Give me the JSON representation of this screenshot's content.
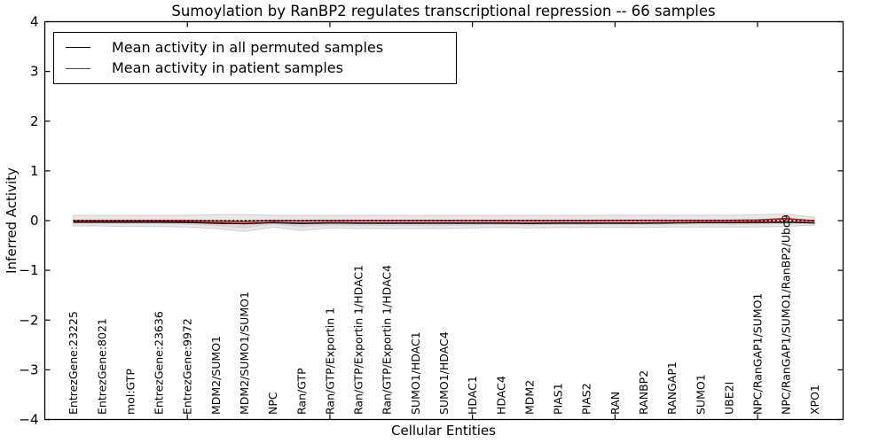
{
  "chart_data": {
    "type": "line",
    "title": "Sumoylation by RanBP2 regulates transcriptional repression -- 66 samples",
    "xlabel": "Cellular Entities",
    "ylabel": "Inferred Activity",
    "ylim": [
      -4,
      4
    ],
    "xlim": [
      0,
      28
    ],
    "grid": false,
    "legend_position": "upper left",
    "ytick_labels": [
      "4",
      "3",
      "2",
      "1",
      "0",
      "−1",
      "−2",
      "−3",
      "−4"
    ],
    "ytick_values": [
      4,
      3,
      2,
      1,
      0,
      -1,
      -2,
      -3,
      -4
    ],
    "xtick_values": [
      5,
      10,
      15,
      20,
      25
    ],
    "categories": [
      "EntrezGene:23225",
      "EntrezGene:8021",
      "mol:GTP",
      "EntrezGene:23636",
      "EntrezGene:9972",
      "MDM2/SUMO1",
      "MDM2/SUMO1/SUMO1",
      "NPC",
      "Ran/GTP",
      "Ran/GTP/Exportin 1",
      "Ran/GTP/Exportin 1/HDAC1",
      "Ran/GTP/Exportin 1/HDAC4",
      "SUMO1/HDAC1",
      "SUMO1/HDAC4",
      "HDAC1",
      "HDAC4",
      "MDM2",
      "PIAS1",
      "PIAS2",
      "RAN",
      "RANBP2",
      "RANGAP1",
      "SUMO1",
      "UBE2I",
      "NPC/RanGAP1/SUMO1",
      "NPC/RanGAP1/SUMO1/RanBP2/Ubc9",
      "XPO1"
    ],
    "series": [
      {
        "name": "Mean activity in all permuted samples",
        "color": "#000000",
        "style": "solid",
        "width": 1.6,
        "values": [
          -0.03,
          -0.03,
          -0.03,
          -0.03,
          -0.035,
          -0.05,
          -0.06,
          -0.04,
          -0.055,
          -0.045,
          -0.05,
          -0.05,
          -0.05,
          -0.05,
          -0.05,
          -0.05,
          -0.055,
          -0.05,
          -0.05,
          -0.05,
          -0.05,
          -0.045,
          -0.04,
          -0.04,
          -0.035,
          -0.03,
          -0.045
        ]
      },
      {
        "name": "Mean activity in patient samples",
        "color": "#ff0000",
        "style": "solid",
        "width": 1.8,
        "values": [
          0,
          0,
          0,
          0,
          0,
          -0.01,
          -0.015,
          0,
          -0.005,
          0,
          0,
          0,
          0,
          0,
          0,
          0,
          0,
          0,
          0,
          0.005,
          0.005,
          0.005,
          0.005,
          0.005,
          0.01,
          0.04,
          -0.005
        ]
      }
    ],
    "band": {
      "name": "permuted-samples activity spread",
      "color": "#000000",
      "opacity": 0.09,
      "upper": [
        0.11,
        0.11,
        0.11,
        0.11,
        0.11,
        0.12,
        0.12,
        0.11,
        0.11,
        0.11,
        0.11,
        0.11,
        0.11,
        0.11,
        0.11,
        0.11,
        0.11,
        0.11,
        0.11,
        0.11,
        0.11,
        0.11,
        0.11,
        0.11,
        0.12,
        0.13,
        0.07
      ],
      "lower": [
        -0.11,
        -0.11,
        -0.12,
        -0.12,
        -0.13,
        -0.16,
        -0.22,
        -0.13,
        -0.2,
        -0.15,
        -0.16,
        -0.16,
        -0.16,
        -0.16,
        -0.15,
        -0.14,
        -0.15,
        -0.14,
        -0.14,
        -0.14,
        -0.14,
        -0.13,
        -0.13,
        -0.13,
        -0.13,
        -0.12,
        -0.09
      ],
      "inner_upper": [
        0.01,
        0.01,
        0.01,
        0.01,
        0.01,
        0.01,
        0.01,
        0.01,
        0.01,
        0.01,
        0.01,
        0.01,
        0.01,
        0.01,
        0.01,
        0.01,
        0.01,
        0.01,
        0.01,
        0.01,
        0.01,
        0.01,
        0.01,
        0.01,
        0.01,
        0.01,
        0.01
      ],
      "inner_lower": [
        -0.06,
        -0.06,
        -0.07,
        -0.07,
        -0.08,
        -0.11,
        -0.16,
        -0.08,
        -0.14,
        -0.1,
        -0.11,
        -0.11,
        -0.11,
        -0.11,
        -0.1,
        -0.09,
        -0.1,
        -0.09,
        -0.09,
        -0.09,
        -0.09,
        -0.08,
        -0.08,
        -0.08,
        -0.08,
        -0.07,
        -0.05
      ]
    },
    "reference_line": {
      "y": 0,
      "color": "#000000",
      "style": "dotted"
    }
  }
}
